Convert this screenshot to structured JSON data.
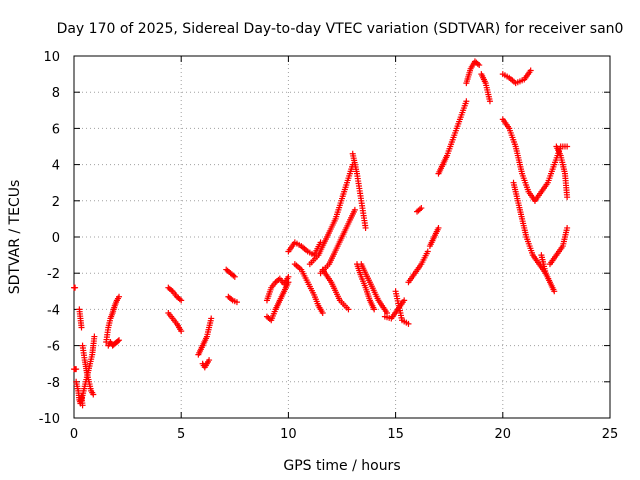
{
  "chart_data": {
    "type": "scatter",
    "title": "Day 170 of 2025, Sidereal Day-to-day VTEC variation (SDTVAR) for receiver san0",
    "xlabel": "GPS time / hours",
    "ylabel": "SDTVAR / TECUs",
    "xlim": [
      0,
      25
    ],
    "ylim": [
      -10,
      10
    ],
    "xticks": [
      0,
      5,
      10,
      15,
      20,
      25
    ],
    "yticks": [
      -10,
      -8,
      -6,
      -4,
      -2,
      0,
      2,
      4,
      6,
      8,
      10
    ],
    "grid": true,
    "marker": "+",
    "color": "#ff0000",
    "segments": [
      {
        "x": [
          0.0,
          0.05
        ],
        "y": [
          -2.8,
          -2.8
        ]
      },
      {
        "x": [
          0.0,
          0.1
        ],
        "y": [
          -7.3,
          -7.3
        ]
      },
      {
        "x": [
          0.1,
          0.2,
          0.25,
          0.3,
          0.35,
          0.4
        ],
        "y": [
          -8.0,
          -8.5,
          -9.0,
          -9.2,
          -8.8,
          -9.3
        ]
      },
      {
        "x": [
          0.25,
          0.3,
          0.35
        ],
        "y": [
          -4.0,
          -4.5,
          -5.0
        ]
      },
      {
        "x": [
          0.35,
          0.45,
          0.55,
          0.65,
          0.75,
          0.85,
          0.95
        ],
        "y": [
          -9.0,
          -8.5,
          -8.0,
          -7.5,
          -7.0,
          -6.5,
          -5.5
        ]
      },
      {
        "x": [
          0.4,
          0.5,
          0.6,
          0.7,
          0.8,
          0.9
        ],
        "y": [
          -6.0,
          -6.8,
          -7.5,
          -8.0,
          -8.5,
          -8.7
        ]
      },
      {
        "x": [
          1.5,
          1.6,
          1.7,
          1.8,
          1.9,
          2.0,
          2.1
        ],
        "y": [
          -5.8,
          -5.0,
          -4.5,
          -4.2,
          -3.8,
          -3.5,
          -3.3
        ]
      },
      {
        "x": [
          1.6,
          1.7,
          1.8,
          1.9,
          2.0,
          2.1
        ],
        "y": [
          -6.0,
          -5.8,
          -6.0,
          -5.9,
          -5.8,
          -5.7
        ]
      },
      {
        "x": [
          4.4,
          4.6,
          4.8,
          5.0
        ],
        "y": [
          -2.8,
          -3.0,
          -3.3,
          -3.5
        ]
      },
      {
        "x": [
          4.4,
          4.6,
          4.8,
          5.0
        ],
        "y": [
          -4.2,
          -4.5,
          -4.8,
          -5.2
        ]
      },
      {
        "x": [
          5.8,
          6.0,
          6.2,
          6.4
        ],
        "y": [
          -6.5,
          -6.0,
          -5.5,
          -4.5
        ]
      },
      {
        "x": [
          6.0,
          6.1,
          6.2,
          6.3
        ],
        "y": [
          -7.0,
          -7.2,
          -7.0,
          -6.8
        ]
      },
      {
        "x": [
          7.1,
          7.3,
          7.5
        ],
        "y": [
          -1.8,
          -2.0,
          -2.2
        ]
      },
      {
        "x": [
          7.2,
          7.4,
          7.6
        ],
        "y": [
          -3.3,
          -3.5,
          -3.6
        ]
      },
      {
        "x": [
          9.0,
          9.2,
          9.4,
          9.6,
          9.8,
          10.0
        ],
        "y": [
          -3.5,
          -2.8,
          -2.5,
          -2.3,
          -2.6,
          -2.2
        ]
      },
      {
        "x": [
          9.0,
          9.2,
          9.4,
          9.6,
          9.8,
          10.0
        ],
        "y": [
          -4.4,
          -4.6,
          -4.0,
          -3.5,
          -3.0,
          -2.5
        ]
      },
      {
        "x": [
          10.0,
          10.3,
          10.6,
          10.9,
          11.2,
          11.5
        ],
        "y": [
          -0.8,
          -0.3,
          -0.5,
          -0.8,
          -1.0,
          -0.3
        ]
      },
      {
        "x": [
          10.3,
          10.6,
          10.9,
          11.2,
          11.4,
          11.6
        ],
        "y": [
          -1.5,
          -1.8,
          -2.5,
          -3.2,
          -3.8,
          -4.2
        ]
      },
      {
        "x": [
          11.0,
          11.4,
          11.8,
          12.2,
          12.6,
          13.0
        ],
        "y": [
          -1.5,
          -1.0,
          0.0,
          1.0,
          2.5,
          4.0
        ]
      },
      {
        "x": [
          11.5,
          11.9,
          12.3,
          12.7,
          13.1
        ],
        "y": [
          -2.0,
          -1.5,
          -0.5,
          0.5,
          1.5
        ]
      },
      {
        "x": [
          11.6,
          12.0,
          12.4,
          12.8
        ],
        "y": [
          -1.8,
          -2.5,
          -3.5,
          -4.0
        ]
      },
      {
        "x": [
          13.0,
          13.2,
          13.4,
          13.6
        ],
        "y": [
          4.6,
          3.5,
          2.0,
          0.5
        ]
      },
      {
        "x": [
          13.2,
          13.4,
          13.6,
          13.8,
          14.0
        ],
        "y": [
          -1.5,
          -2.2,
          -2.8,
          -3.5,
          -4.0
        ]
      },
      {
        "x": [
          13.4,
          13.8,
          14.2,
          14.6
        ],
        "y": [
          -1.5,
          -2.5,
          -3.5,
          -4.2
        ]
      },
      {
        "x": [
          14.5,
          14.8,
          15.1,
          15.4
        ],
        "y": [
          -4.4,
          -4.5,
          -4.0,
          -3.5
        ]
      },
      {
        "x": [
          15.0,
          15.3,
          15.6
        ],
        "y": [
          -3.0,
          -4.6,
          -4.8
        ]
      },
      {
        "x": [
          15.6,
          15.9,
          16.2,
          16.5
        ],
        "y": [
          -2.5,
          -2.0,
          -1.5,
          -0.8
        ]
      },
      {
        "x": [
          16.0,
          16.2
        ],
        "y": [
          1.4,
          1.6
        ]
      },
      {
        "x": [
          16.6,
          16.8,
          17.0
        ],
        "y": [
          -0.5,
          0.0,
          0.5
        ]
      },
      {
        "x": [
          17.0,
          17.2,
          17.4
        ],
        "y": [
          3.5,
          4.0,
          4.5
        ]
      },
      {
        "x": [
          17.4,
          17.7,
          18.0,
          18.3
        ],
        "y": [
          4.5,
          5.5,
          6.5,
          7.5
        ]
      },
      {
        "x": [
          18.3,
          18.5,
          18.7,
          18.9
        ],
        "y": [
          8.5,
          9.3,
          9.7,
          9.5
        ]
      },
      {
        "x": [
          19.0,
          19.2,
          19.4
        ],
        "y": [
          9.0,
          8.5,
          7.5
        ]
      },
      {
        "x": [
          20.0,
          20.3,
          20.6,
          21.0,
          21.3
        ],
        "y": [
          9.0,
          8.8,
          8.5,
          8.7,
          9.2
        ]
      },
      {
        "x": [
          20.0,
          20.3,
          20.6,
          20.9,
          21.2,
          21.5
        ],
        "y": [
          6.5,
          6.0,
          5.0,
          3.5,
          2.5,
          2.0
        ]
      },
      {
        "x": [
          20.5,
          20.8,
          21.1,
          21.4,
          21.7,
          22.0
        ],
        "y": [
          3.0,
          1.5,
          0.0,
          -1.0,
          -1.5,
          -2.0
        ]
      },
      {
        "x": [
          21.5,
          21.8,
          22.1,
          22.4,
          22.7,
          23.0
        ],
        "y": [
          2.0,
          2.5,
          3.0,
          4.0,
          5.0,
          5.0
        ]
      },
      {
        "x": [
          21.8,
          22.0,
          22.2,
          22.4
        ],
        "y": [
          -1.0,
          -2.0,
          -2.5,
          -3.0
        ]
      },
      {
        "x": [
          22.2,
          22.5,
          22.8,
          23.0
        ],
        "y": [
          -1.5,
          -1.0,
          -0.5,
          0.5
        ]
      },
      {
        "x": [
          22.5,
          22.7,
          22.9,
          23.0
        ],
        "y": [
          5.0,
          4.5,
          3.5,
          2.2
        ]
      }
    ]
  }
}
